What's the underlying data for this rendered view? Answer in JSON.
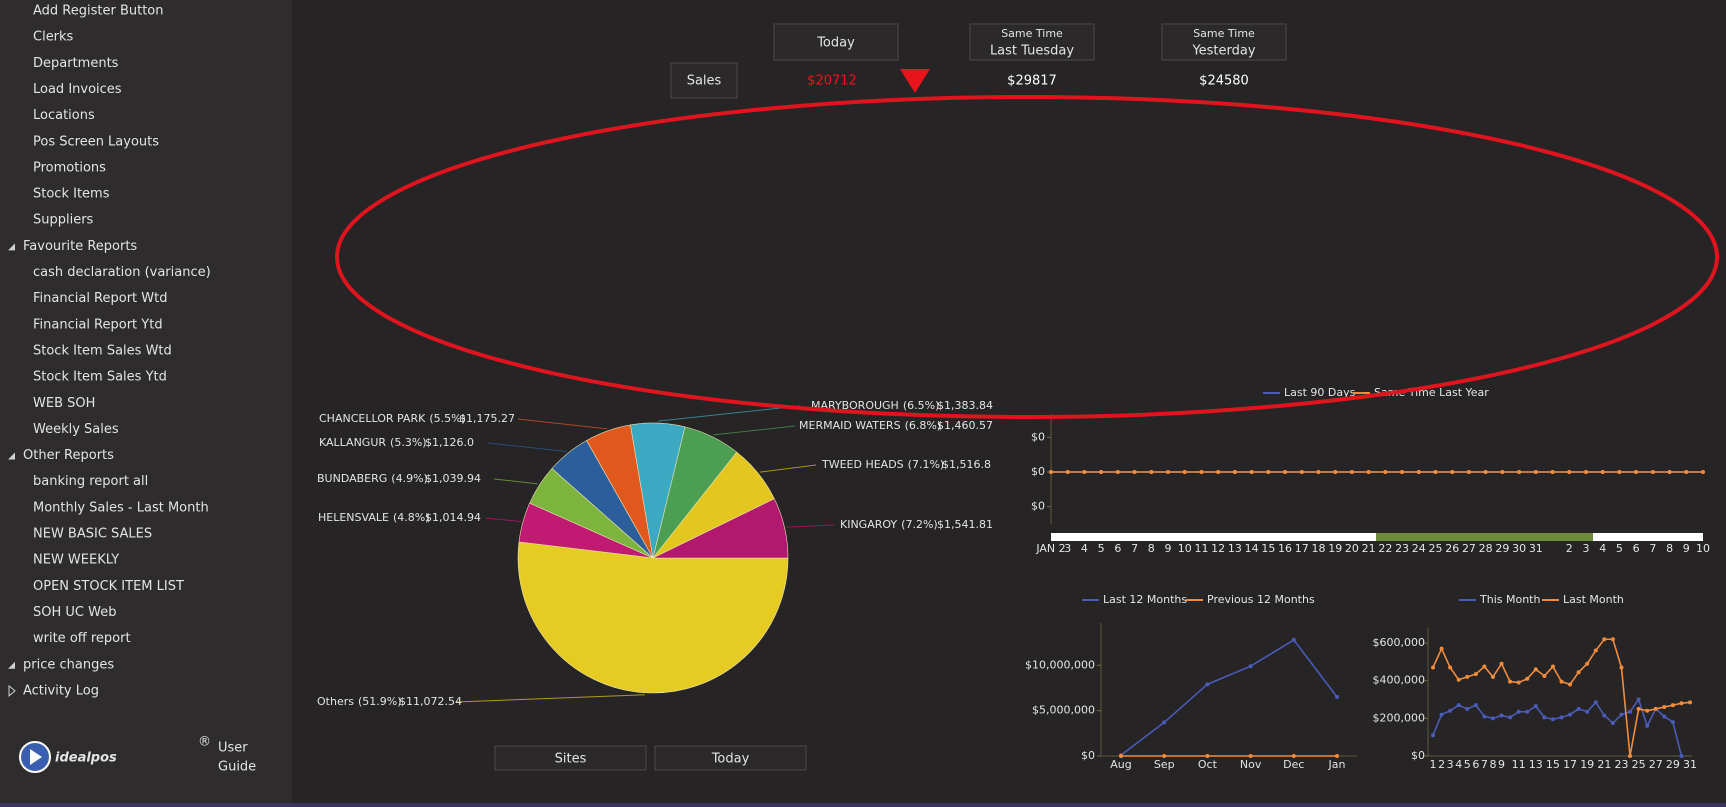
{
  "sidebar": {
    "items": [
      "Add Register Button",
      "Clerks",
      "Departments",
      "Load Invoices",
      "Locations",
      "Pos Screen Layouts",
      "Promotions",
      "Stock Items",
      "Suppliers"
    ],
    "groups": [
      {
        "label": "Favourite Reports",
        "expanded": true,
        "items": [
          "cash declaration (variance)",
          "Financial Report Wtd",
          "Financial Report Ytd",
          "Stock Item Sales Wtd",
          "Stock Item Sales Ytd",
          "WEB SOH",
          "Weekly Sales"
        ]
      },
      {
        "label": "Other Reports",
        "expanded": true,
        "items": [
          "banking report all",
          "Monthly Sales - Last Month",
          "NEW BASIC SALES",
          "NEW WEEKLY",
          "OPEN STOCK ITEM LIST",
          "SOH UC Web",
          "write off report"
        ]
      },
      {
        "label": "price changes",
        "expanded": true,
        "items": []
      },
      {
        "label": "Activity Log",
        "expanded": false,
        "items": []
      }
    ]
  },
  "logo": {
    "brand": "idealpos",
    "mark": "®",
    "line1": "User",
    "line2": "Guide"
  },
  "kpi": {
    "row_label": "Sales",
    "columns": [
      {
        "header": "Today",
        "value": "$20712",
        "color": "#e8141c",
        "trend": "down"
      },
      {
        "caption": "Same Time",
        "header": "Last Tuesday",
        "value": "$29817",
        "color": "#ffffff"
      },
      {
        "caption": "Same Time",
        "header": "Yesterday",
        "value": "$24580",
        "color": "#ffffff"
      }
    ]
  },
  "chart_data": [
    {
      "type": "pie",
      "categories": [
        "Others",
        "HELENSVALE",
        "BUNDABERG",
        "KALLANGUR",
        "CHANCELLOR PARK",
        "MARYBOROUGH",
        "MERMAID WATERS",
        "TWEED HEADS",
        "KINGAROY"
      ],
      "values": [
        11072.54,
        1014.94,
        1039.94,
        1126.0,
        1175.27,
        1383.84,
        1460.57,
        1516.8,
        1541.81
      ],
      "value_labels": [
        "$11,072.54",
        "$1,014.94",
        "$1,039.94",
        "$1,126.0",
        "$1,175.27",
        "$1,383.84",
        "$1,460.57",
        "$1,516.8",
        "$1,541.81"
      ],
      "percents": [
        51.9,
        4.8,
        4.9,
        5.3,
        5.5,
        6.5,
        6.8,
        7.1,
        7.2
      ],
      "percent_labels": [
        "(51.9%)",
        "(4.8%)",
        "(4.9%)",
        "(5.3%)",
        "(5.5%)",
        "(6.5%)",
        "(6.8%)",
        "(7.1%)",
        "(7.2%)"
      ],
      "colors": [
        "#e6cc22",
        "#c01a72",
        "#7db43e",
        "#2c5e9c",
        "#e0581c",
        "#3ca9c2",
        "#4c9f52",
        "#e3c61e",
        "#b2186e"
      ]
    },
    {
      "type": "line",
      "categories": [
        "JAN 2",
        "3",
        "4",
        "5",
        "6",
        "7",
        "8",
        "9",
        "10",
        "11",
        "12",
        "13",
        "14",
        "15",
        "16",
        "17",
        "18",
        "19",
        "20",
        "21",
        "22",
        "23",
        "24",
        "25",
        "26",
        "27",
        "28",
        "29",
        "30",
        "31",
        null,
        "2",
        "3",
        "4",
        "5",
        "6",
        "7",
        "8",
        "9",
        "10"
      ],
      "series": [
        {
          "name": "Last 90 Days",
          "color": "#4a5bb8",
          "values": [
            0,
            0,
            0,
            0,
            0,
            0,
            0,
            0,
            0,
            0,
            0,
            0,
            0,
            0,
            0,
            0,
            0,
            0,
            0,
            0,
            0,
            0,
            0,
            0,
            0,
            0,
            0,
            0,
            0,
            0,
            0,
            0,
            0,
            0,
            0,
            0,
            0,
            0,
            0,
            0
          ]
        },
        {
          "name": "Same Time Last Year",
          "color": "#f28c3a",
          "values": [
            0,
            0,
            0,
            0,
            0,
            0,
            0,
            0,
            0,
            0,
            0,
            0,
            0,
            0,
            0,
            0,
            0,
            0,
            0,
            0,
            0,
            0,
            0,
            0,
            0,
            0,
            0,
            0,
            0,
            0,
            0,
            0,
            0,
            0,
            0,
            0,
            0,
            0,
            0,
            0
          ]
        }
      ],
      "ylim": [
        -0.75,
        0.75
      ],
      "yticks": [
        {
          "value": 0.5,
          "label": "$0"
        },
        {
          "value": 0,
          "label": "$0"
        },
        {
          "value": -0.5,
          "label": "$0"
        }
      ],
      "legend": "top"
    },
    {
      "type": "line",
      "categories": [
        "Aug",
        "Sep",
        "Oct",
        "Nov",
        "Dec",
        "Jan"
      ],
      "series": [
        {
          "name": "Last 12 Months",
          "color": "#4a5bb8",
          "values": [
            100000,
            3700000,
            7900000,
            9900000,
            12800000,
            6500000
          ]
        },
        {
          "name": "Previous 12 Months",
          "color": "#f28c3a",
          "values": [
            0,
            0,
            0,
            0,
            0,
            0
          ]
        }
      ],
      "ylim": [
        0,
        14000000
      ],
      "yticks": [
        {
          "value": 0,
          "label": "$0"
        },
        {
          "value": 5000000,
          "label": "$5,000,000"
        },
        {
          "value": 10000000,
          "label": "$10,000,000"
        }
      ],
      "legend": "top"
    },
    {
      "type": "line",
      "categories": [
        "1",
        "2",
        "3",
        "4",
        "5",
        "6",
        "7",
        "8",
        "9",
        null,
        "11",
        null,
        "13",
        null,
        "15",
        null,
        "17",
        null,
        "19",
        null,
        "21",
        null,
        "23",
        null,
        "25",
        null,
        "27",
        null,
        "29",
        null,
        "31"
      ],
      "series": [
        {
          "name": "This Month",
          "color": "#4a5bb8",
          "values": [
            110000,
            220000,
            240000,
            270000,
            250000,
            270000,
            210000,
            200000,
            215000,
            205000,
            235000,
            235000,
            265000,
            205000,
            195000,
            205000,
            220000,
            250000,
            235000,
            285000,
            215000,
            175000,
            220000,
            235000,
            300000,
            160000,
            250000,
            210000,
            180000,
            0,
            null
          ]
        },
        {
          "name": "Last Month",
          "color": "#f28c3a",
          "values": [
            470000,
            570000,
            470000,
            405000,
            420000,
            435000,
            475000,
            420000,
            490000,
            395000,
            390000,
            410000,
            460000,
            425000,
            475000,
            395000,
            380000,
            445000,
            490000,
            560000,
            620000,
            620000,
            470000,
            0,
            250000,
            240000,
            250000,
            260000,
            270000,
            280000,
            285000
          ]
        }
      ],
      "ylim": [
        0,
        650000
      ],
      "yticks": [
        {
          "value": 0,
          "label": "$0"
        },
        {
          "value": 200000,
          "label": "$200,000"
        },
        {
          "value": 400000,
          "label": "$400,000"
        },
        {
          "value": 600000,
          "label": "$600,000"
        }
      ],
      "legend": "top"
    }
  ],
  "buttons": [
    "Sites",
    "Today"
  ]
}
